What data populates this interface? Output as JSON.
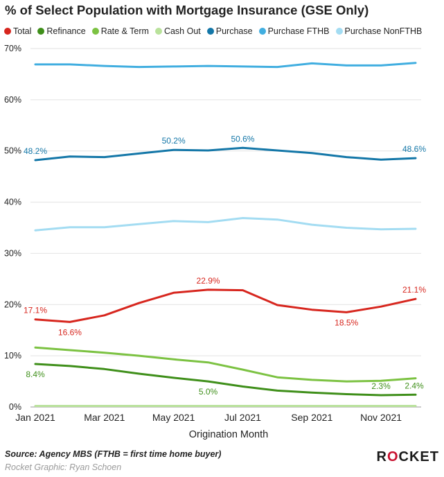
{
  "chart_data": {
    "type": "line",
    "title": "% of Select Population with Mortgage Insurance (GSE Only)",
    "xlabel": "Origination Month",
    "ylabel": "",
    "ylim": [
      0,
      70
    ],
    "y_ticks": [
      "0%",
      "10%",
      "20%",
      "30%",
      "40%",
      "50%",
      "60%",
      "70%"
    ],
    "x": [
      "Jan 2021",
      "Feb 2021",
      "Mar 2021",
      "Apr 2021",
      "May 2021",
      "Jun 2021",
      "Jul 2021",
      "Aug 2021",
      "Sep 2021",
      "Oct 2021",
      "Nov 2021",
      "Dec 2021"
    ],
    "x_tick_labels": [
      "Jan 2021",
      "Mar 2021",
      "May 2021",
      "Jul 2021",
      "Sep 2021",
      "Nov 2021"
    ],
    "grid": "horizontal",
    "legend_position": "top-left",
    "series": [
      {
        "name": "Total",
        "color": "#d7261e",
        "values": [
          17.1,
          16.6,
          17.9,
          20.3,
          22.3,
          22.9,
          22.8,
          19.9,
          19.0,
          18.5,
          19.6,
          21.1
        ]
      },
      {
        "name": "Refinance",
        "color": "#3f8f1a",
        "values": [
          8.4,
          8.0,
          7.4,
          6.5,
          5.7,
          5.0,
          4.0,
          3.2,
          2.8,
          2.5,
          2.3,
          2.4
        ]
      },
      {
        "name": "Rate & Term",
        "color": "#7cc242",
        "values": [
          11.6,
          11.1,
          10.6,
          10.0,
          9.3,
          8.7,
          7.3,
          5.8,
          5.3,
          5.0,
          5.1,
          5.6
        ]
      },
      {
        "name": "Cash Out",
        "color": "#b9e29b",
        "values": [
          0.2,
          0.2,
          0.2,
          0.2,
          0.2,
          0.2,
          0.2,
          0.2,
          0.2,
          0.2,
          0.2,
          0.2
        ]
      },
      {
        "name": "Purchase",
        "color": "#1477a8",
        "values": [
          48.2,
          48.9,
          48.8,
          49.5,
          50.2,
          50.1,
          50.6,
          50.1,
          49.6,
          48.8,
          48.3,
          48.6
        ]
      },
      {
        "name": "Purchase FTHB",
        "color": "#41aee0",
        "values": [
          66.9,
          66.9,
          66.6,
          66.4,
          66.5,
          66.6,
          66.5,
          66.4,
          67.1,
          66.7,
          66.7,
          67.2
        ]
      },
      {
        "name": "Purchase NonFTHB",
        "color": "#a3dcf2",
        "values": [
          34.5,
          35.1,
          35.1,
          35.7,
          36.3,
          36.1,
          36.9,
          36.6,
          35.6,
          35.0,
          34.7,
          34.8
        ]
      }
    ],
    "data_labels": [
      {
        "series": "Total",
        "index": 0,
        "text": "17.1%",
        "pos": "above"
      },
      {
        "series": "Total",
        "index": 1,
        "text": "16.6%",
        "pos": "below"
      },
      {
        "series": "Total",
        "index": 5,
        "text": "22.9%",
        "pos": "above"
      },
      {
        "series": "Total",
        "index": 9,
        "text": "18.5%",
        "pos": "below"
      },
      {
        "series": "Total",
        "index": 11,
        "text": "21.1%",
        "pos": "above"
      },
      {
        "series": "Refinance",
        "index": 0,
        "text": "8.4%",
        "pos": "below"
      },
      {
        "series": "Refinance",
        "index": 5,
        "text": "5.0%",
        "pos": "below"
      },
      {
        "series": "Refinance",
        "index": 10,
        "text": "2.3%",
        "pos": "above"
      },
      {
        "series": "Refinance",
        "index": 11,
        "text": "2.4%",
        "pos": "above"
      },
      {
        "series": "Purchase",
        "index": 0,
        "text": "48.2%",
        "pos": "above"
      },
      {
        "series": "Purchase",
        "index": 4,
        "text": "50.2%",
        "pos": "above"
      },
      {
        "series": "Purchase",
        "index": 6,
        "text": "50.6%",
        "pos": "above"
      },
      {
        "series": "Purchase",
        "index": 11,
        "text": "48.6%",
        "pos": "above"
      }
    ]
  },
  "footer": {
    "source": "Source: Agency MBS (FTHB = first time home buyer)",
    "credit": "Rocket Graphic: Ryan Schoen",
    "logo_pre": "R",
    "logo_o": "O",
    "logo_post": "CKET"
  }
}
